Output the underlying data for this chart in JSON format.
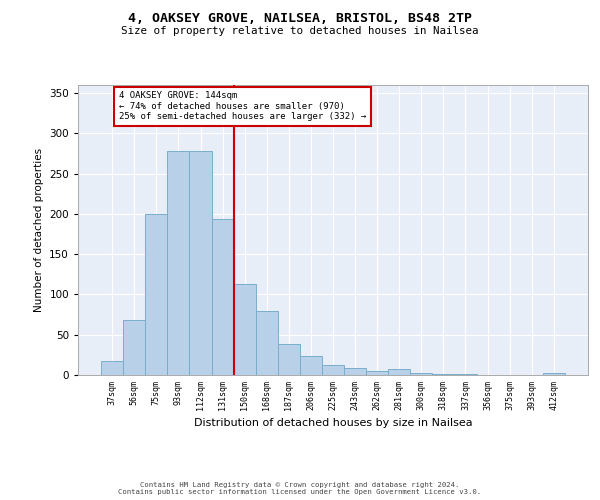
{
  "title1": "4, OAKSEY GROVE, NAILSEA, BRISTOL, BS48 2TP",
  "title2": "Size of property relative to detached houses in Nailsea",
  "xlabel": "Distribution of detached houses by size in Nailsea",
  "ylabel": "Number of detached properties",
  "categories": [
    "37sqm",
    "56sqm",
    "75sqm",
    "93sqm",
    "112sqm",
    "131sqm",
    "150sqm",
    "168sqm",
    "187sqm",
    "206sqm",
    "225sqm",
    "243sqm",
    "262sqm",
    "281sqm",
    "300sqm",
    "318sqm",
    "337sqm",
    "356sqm",
    "375sqm",
    "393sqm",
    "412sqm"
  ],
  "values": [
    17,
    68,
    200,
    278,
    278,
    194,
    113,
    79,
    38,
    24,
    13,
    9,
    5,
    7,
    3,
    1,
    1,
    0,
    0,
    0,
    2
  ],
  "bar_color": "#b8d0e8",
  "bar_edge_color": "#7aadcc",
  "vline_x": 5.5,
  "vline_color": "#cc0000",
  "annotation_text": "4 OAKSEY GROVE: 144sqm\n← 74% of detached houses are smaller (970)\n25% of semi-detached houses are larger (332) →",
  "annotation_box_color": "#ffffff",
  "annotation_box_edge": "#cc0000",
  "ylim": [
    0,
    360
  ],
  "yticks": [
    0,
    50,
    100,
    150,
    200,
    250,
    300,
    350
  ],
  "bg_color": "#e8eef8",
  "grid_color": "#ffffff",
  "footer1": "Contains HM Land Registry data © Crown copyright and database right 2024.",
  "footer2": "Contains public sector information licensed under the Open Government Licence v3.0."
}
